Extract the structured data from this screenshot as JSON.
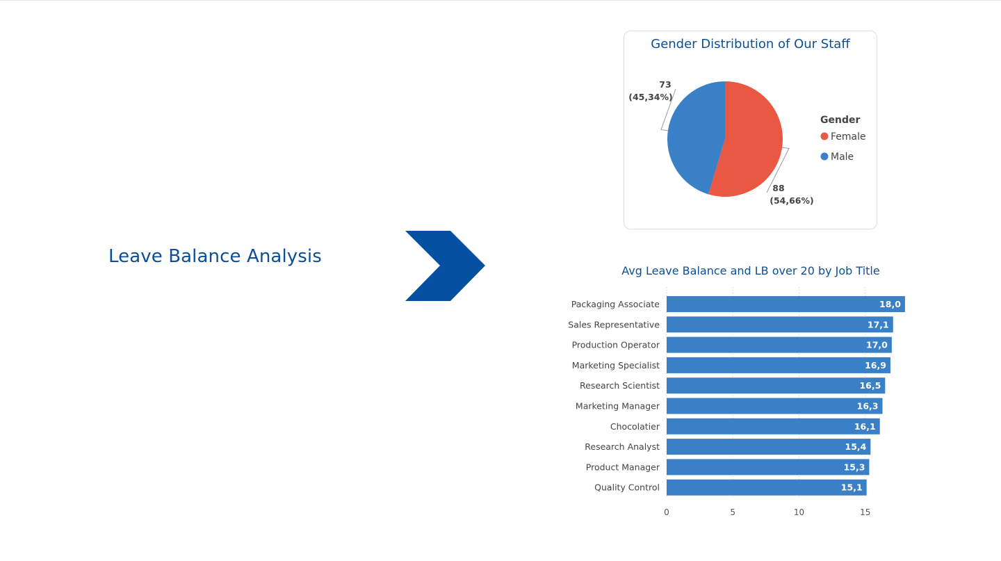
{
  "page": {
    "title": "Leave Balance Analysis"
  },
  "colors": {
    "accent": "#0d4f96",
    "chevron": "#0550a0",
    "bar": "#3a80c6",
    "female": "#e85842",
    "male": "#3a80c6"
  },
  "icons": {
    "arrow": "chevron-right-icon"
  },
  "chart_data": [
    {
      "type": "pie",
      "title": "Gender Distribution of Our Staff",
      "legend_title": "Gender",
      "legend_position": "right",
      "slices": [
        {
          "name": "Female",
          "value": 88,
          "label_count": "88",
          "label_pct": "(54,66%)"
        },
        {
          "name": "Male",
          "value": 73,
          "label_count": "73",
          "label_pct": "(45,34%)"
        }
      ]
    },
    {
      "type": "bar",
      "orientation": "horizontal",
      "title": "Avg Leave Balance and LB over 20 by Job Title",
      "categories": [
        "Packaging Associate",
        "Sales Representative",
        "Production Operator",
        "Marketing Specialist",
        "Research Scientist",
        "Marketing Manager",
        "Chocolatier",
        "Research Analyst",
        "Product Manager",
        "Quality Control"
      ],
      "values": [
        18.0,
        17.1,
        17.0,
        16.9,
        16.5,
        16.3,
        16.1,
        15.4,
        15.3,
        15.1
      ],
      "value_labels": [
        "18,0",
        "17,1",
        "17,0",
        "16,9",
        "16,5",
        "16,3",
        "16,1",
        "15,4",
        "15,3",
        "15,1"
      ],
      "xticks": [
        "0",
        "5",
        "10",
        "15"
      ],
      "xlim": [
        0,
        18.2
      ],
      "grid": true
    }
  ]
}
